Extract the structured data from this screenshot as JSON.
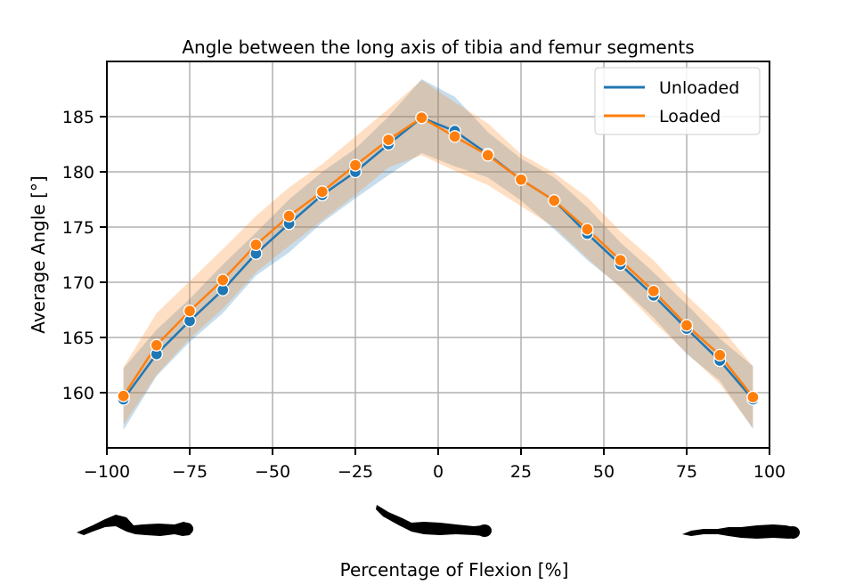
{
  "chart_data": {
    "type": "line",
    "title": "Angle between the long axis of tibia and femur segments",
    "xlabel": "Percentage of Flexion [%]",
    "ylabel": "Average Angle [°]",
    "xlim": [
      -100,
      100
    ],
    "ylim": [
      155,
      190
    ],
    "xticks": [
      -100,
      -75,
      -50,
      -25,
      0,
      25,
      50,
      75,
      100
    ],
    "xtick_labels": [
      "−100",
      "−75",
      "−50",
      "−25",
      "0",
      "25",
      "50",
      "75",
      "100"
    ],
    "yticks": [
      160,
      165,
      170,
      175,
      180,
      185
    ],
    "ytick_labels": [
      "160",
      "165",
      "170",
      "175",
      "180",
      "185"
    ],
    "grid": true,
    "legend_position": "top-right",
    "x": [
      -95,
      -85,
      -75,
      -65,
      -55,
      -45,
      -35,
      -25,
      -15,
      -5,
      5,
      15,
      25,
      35,
      45,
      55,
      65,
      75,
      85,
      95
    ],
    "series": [
      {
        "name": "Unloaded",
        "color": "#1f77b4",
        "values": [
          159.4,
          163.5,
          166.5,
          169.3,
          172.6,
          175.3,
          177.9,
          180.0,
          182.5,
          184.9,
          183.7,
          181.6,
          179.3,
          177.4,
          174.4,
          171.6,
          168.8,
          165.8,
          162.9,
          159.4
        ],
        "ci_low": [
          156.6,
          161.5,
          164.6,
          167.2,
          170.6,
          172.7,
          175.4,
          177.6,
          179.7,
          181.7,
          180.5,
          179.5,
          177.4,
          174.8,
          172.0,
          169.6,
          166.8,
          163.5,
          161.1,
          156.7
        ],
        "ci_high": [
          162.2,
          165.7,
          168.5,
          171.6,
          174.5,
          177.5,
          180.0,
          182.1,
          185.0,
          188.4,
          186.8,
          183.6,
          181.2,
          179.5,
          176.8,
          173.6,
          170.9,
          168.0,
          164.9,
          162.4
        ]
      },
      {
        "name": "Loaded",
        "color": "#ff7f0e",
        "values": [
          159.7,
          164.3,
          167.4,
          170.2,
          173.4,
          176.0,
          178.2,
          180.6,
          182.9,
          184.9,
          183.2,
          181.5,
          179.3,
          177.4,
          174.8,
          172.0,
          169.2,
          166.1,
          163.4,
          159.6
        ],
        "ci_low": [
          157.1,
          161.6,
          164.9,
          167.6,
          170.9,
          173.3,
          175.6,
          177.9,
          180.4,
          181.5,
          180.1,
          178.8,
          176.9,
          175.0,
          172.2,
          169.5,
          166.4,
          163.6,
          160.8,
          156.8
        ],
        "ci_high": [
          162.3,
          167.2,
          170.1,
          173.0,
          176.0,
          178.6,
          180.7,
          183.2,
          185.7,
          188.3,
          186.3,
          184.4,
          181.6,
          179.9,
          177.7,
          174.6,
          172.0,
          168.8,
          166.0,
          162.4
        ]
      }
    ]
  },
  "posture_icons": [
    {
      "name": "flexed-posture-figure",
      "at": -100
    },
    {
      "name": "neutral-posture-figure",
      "at": 0
    },
    {
      "name": "extended-posture-figure",
      "at": 100
    }
  ]
}
